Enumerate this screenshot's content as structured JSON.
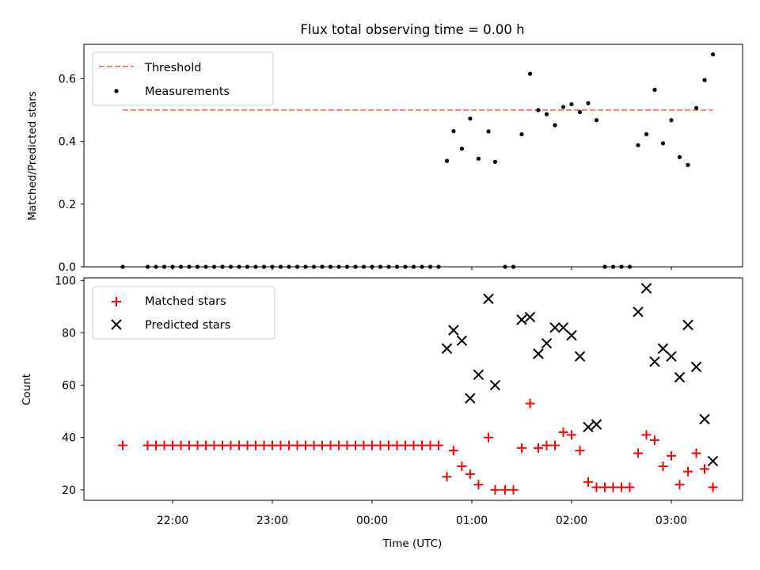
{
  "figure": {
    "title": "Flux total observing time = 0.00 h"
  },
  "chart_data": [
    {
      "type": "scatter",
      "name": "top-panel",
      "ylabel": "Matched/Predicted stars",
      "ylim": [
        0,
        0.71
      ],
      "yticks": [
        "0.0",
        "0.2",
        "0.4",
        "0.6"
      ],
      "x_axis": "time (UTC)",
      "legend_position": "upper-left",
      "threshold": {
        "label": "Threshold",
        "value": 0.5,
        "x_start": "21:30",
        "x_end": "03:25",
        "color": "#ff7f7f"
      },
      "series": [
        {
          "name": "Measurements",
          "color": "#000000",
          "points": [
            [
              "21:30",
              0.0
            ],
            [
              "21:45",
              0.0
            ],
            [
              "21:50",
              0.0
            ],
            [
              "21:55",
              0.0
            ],
            [
              "22:00",
              0.0
            ],
            [
              "22:05",
              0.0
            ],
            [
              "22:10",
              0.0
            ],
            [
              "22:15",
              0.0
            ],
            [
              "22:20",
              0.0
            ],
            [
              "22:25",
              0.0
            ],
            [
              "22:30",
              0.0
            ],
            [
              "22:35",
              0.0
            ],
            [
              "22:40",
              0.0
            ],
            [
              "22:45",
              0.0
            ],
            [
              "22:50",
              0.0
            ],
            [
              "22:55",
              0.0
            ],
            [
              "23:00",
              0.0
            ],
            [
              "23:05",
              0.0
            ],
            [
              "23:10",
              0.0
            ],
            [
              "23:15",
              0.0
            ],
            [
              "23:20",
              0.0
            ],
            [
              "23:25",
              0.0
            ],
            [
              "23:30",
              0.0
            ],
            [
              "23:35",
              0.0
            ],
            [
              "23:40",
              0.0
            ],
            [
              "23:45",
              0.0
            ],
            [
              "23:50",
              0.0
            ],
            [
              "23:55",
              0.0
            ],
            [
              "00:00",
              0.0
            ],
            [
              "00:05",
              0.0
            ],
            [
              "00:10",
              0.0
            ],
            [
              "00:15",
              0.0
            ],
            [
              "00:20",
              0.0
            ],
            [
              "00:25",
              0.0
            ],
            [
              "00:30",
              0.0
            ],
            [
              "00:35",
              0.0
            ],
            [
              "00:40",
              0.0
            ],
            [
              "00:45",
              0.338
            ],
            [
              "00:49",
              0.433
            ],
            [
              "00:54",
              0.377
            ],
            [
              "00:59",
              0.473
            ],
            [
              "01:04",
              0.345
            ],
            [
              "01:10",
              0.432
            ],
            [
              "01:14",
              0.335
            ],
            [
              "01:20",
              0.0
            ],
            [
              "01:25",
              0.0
            ],
            [
              "01:30",
              0.423
            ],
            [
              "01:35",
              0.616
            ],
            [
              "01:40",
              0.5
            ],
            [
              "01:45",
              0.487
            ],
            [
              "01:50",
              0.452
            ],
            [
              "01:55",
              0.51
            ],
            [
              "02:00",
              0.519
            ],
            [
              "02:05",
              0.494
            ],
            [
              "02:10",
              0.522
            ],
            [
              "02:15",
              0.468
            ],
            [
              "02:20",
              0.0
            ],
            [
              "02:25",
              0.0
            ],
            [
              "02:30",
              0.0
            ],
            [
              "02:35",
              0.0
            ],
            [
              "02:40",
              0.388
            ],
            [
              "02:45",
              0.423
            ],
            [
              "02:50",
              0.565
            ],
            [
              "02:55",
              0.394
            ],
            [
              "03:00",
              0.468
            ],
            [
              "03:05",
              0.35
            ],
            [
              "03:10",
              0.325
            ],
            [
              "03:15",
              0.507
            ],
            [
              "03:20",
              0.596
            ],
            [
              "03:25",
              0.678
            ]
          ]
        }
      ]
    },
    {
      "type": "scatter",
      "name": "bottom-panel",
      "xlabel": "Time (UTC)",
      "ylabel": "Count",
      "ylim": [
        16,
        101
      ],
      "yticks": [
        "20",
        "40",
        "60",
        "80",
        "100"
      ],
      "xticks": [
        "22:00",
        "23:00",
        "00:00",
        "01:00",
        "02:00",
        "03:00"
      ],
      "legend_position": "upper-left",
      "series": [
        {
          "name": "Matched stars",
          "marker": "plus",
          "color": "#ff0000",
          "points": [
            [
              "21:30",
              37
            ],
            [
              "21:45",
              37
            ],
            [
              "21:50",
              37
            ],
            [
              "21:55",
              37
            ],
            [
              "22:00",
              37
            ],
            [
              "22:05",
              37
            ],
            [
              "22:10",
              37
            ],
            [
              "22:15",
              37
            ],
            [
              "22:20",
              37
            ],
            [
              "22:25",
              37
            ],
            [
              "22:30",
              37
            ],
            [
              "22:35",
              37
            ],
            [
              "22:40",
              37
            ],
            [
              "22:45",
              37
            ],
            [
              "22:50",
              37
            ],
            [
              "22:55",
              37
            ],
            [
              "23:00",
              37
            ],
            [
              "23:05",
              37
            ],
            [
              "23:10",
              37
            ],
            [
              "23:15",
              37
            ],
            [
              "23:20",
              37
            ],
            [
              "23:25",
              37
            ],
            [
              "23:30",
              37
            ],
            [
              "23:35",
              37
            ],
            [
              "23:40",
              37
            ],
            [
              "23:45",
              37
            ],
            [
              "23:50",
              37
            ],
            [
              "23:55",
              37
            ],
            [
              "00:00",
              37
            ],
            [
              "00:05",
              37
            ],
            [
              "00:10",
              37
            ],
            [
              "00:15",
              37
            ],
            [
              "00:20",
              37
            ],
            [
              "00:25",
              37
            ],
            [
              "00:30",
              37
            ],
            [
              "00:35",
              37
            ],
            [
              "00:40",
              37
            ],
            [
              "00:45",
              25
            ],
            [
              "00:49",
              35
            ],
            [
              "00:54",
              29
            ],
            [
              "00:59",
              26
            ],
            [
              "01:04",
              22
            ],
            [
              "01:10",
              40
            ],
            [
              "01:14",
              20
            ],
            [
              "01:20",
              20
            ],
            [
              "01:25",
              20
            ],
            [
              "01:30",
              36
            ],
            [
              "01:35",
              53
            ],
            [
              "01:40",
              36
            ],
            [
              "01:45",
              37
            ],
            [
              "01:50",
              37
            ],
            [
              "01:55",
              42
            ],
            [
              "02:00",
              41
            ],
            [
              "02:05",
              35
            ],
            [
              "02:10",
              23
            ],
            [
              "02:15",
              21
            ],
            [
              "02:20",
              21
            ],
            [
              "02:25",
              21
            ],
            [
              "02:30",
              21
            ],
            [
              "02:35",
              21
            ],
            [
              "02:40",
              34
            ],
            [
              "02:45",
              41
            ],
            [
              "02:50",
              39
            ],
            [
              "02:55",
              29
            ],
            [
              "03:00",
              33
            ],
            [
              "03:05",
              22
            ],
            [
              "03:10",
              27
            ],
            [
              "03:15",
              34
            ],
            [
              "03:20",
              28
            ],
            [
              "03:25",
              21
            ]
          ]
        },
        {
          "name": "Predicted stars",
          "marker": "x",
          "color": "#000000",
          "points": [
            [
              "00:45",
              74
            ],
            [
              "00:49",
              81
            ],
            [
              "00:54",
              77
            ],
            [
              "00:59",
              55
            ],
            [
              "01:04",
              64
            ],
            [
              "01:10",
              93
            ],
            [
              "01:14",
              60
            ],
            [
              "01:30",
              85
            ],
            [
              "01:35",
              86
            ],
            [
              "01:40",
              72
            ],
            [
              "01:45",
              76
            ],
            [
              "01:50",
              82
            ],
            [
              "01:55",
              82
            ],
            [
              "02:00",
              79
            ],
            [
              "02:05",
              71
            ],
            [
              "02:10",
              44
            ],
            [
              "02:15",
              45
            ],
            [
              "02:40",
              88
            ],
            [
              "02:45",
              97
            ],
            [
              "02:50",
              69
            ],
            [
              "02:55",
              74
            ],
            [
              "03:00",
              71
            ],
            [
              "03:05",
              63
            ],
            [
              "03:10",
              83
            ],
            [
              "03:15",
              67
            ],
            [
              "03:20",
              47
            ],
            [
              "03:25",
              31
            ]
          ]
        }
      ]
    }
  ]
}
